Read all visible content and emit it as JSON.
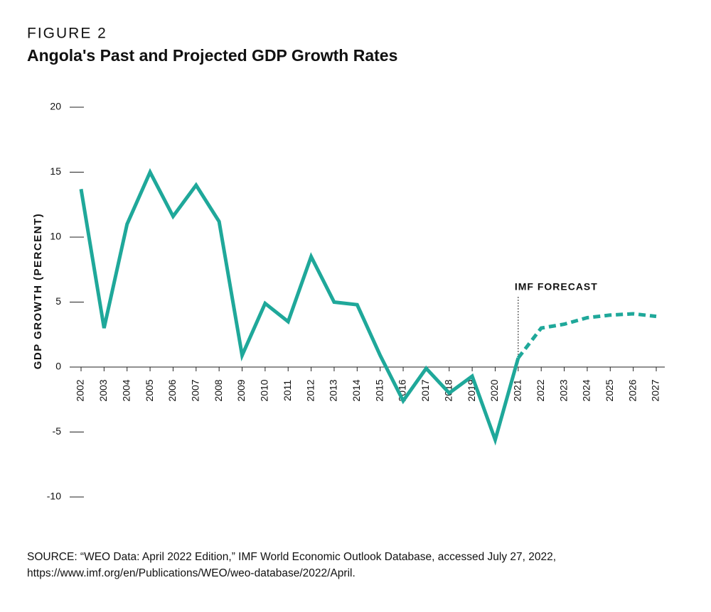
{
  "chart_data": {
    "type": "line",
    "label": "FIGURE 2",
    "title": "Angola's Past and Projected GDP Growth Rates",
    "y_label": "GDP GROWTH (PERCENT)",
    "categories": [
      "2002",
      "2003",
      "2004",
      "2005",
      "2006",
      "2007",
      "2008",
      "2009",
      "2010",
      "2011",
      "2012",
      "2013",
      "2014",
      "2015",
      "2016",
      "2017",
      "2018",
      "2019",
      "2020",
      "2021",
      "2022",
      "2023",
      "2024",
      "2025",
      "2026",
      "2027"
    ],
    "series": [
      {
        "color": "#1fa89a",
        "dashed": false,
        "values": [
          13.7,
          3.0,
          11.0,
          15.0,
          11.6,
          14.0,
          11.2,
          0.9,
          4.9,
          3.5,
          8.5,
          5.0,
          4.8,
          0.9,
          -2.6,
          -0.1,
          -2.0,
          -0.7,
          -5.6,
          0.7,
          null,
          null,
          null,
          null,
          null,
          null
        ]
      },
      {
        "color": "#1fa89a",
        "dashed": true,
        "values": [
          null,
          null,
          null,
          null,
          null,
          null,
          null,
          null,
          null,
          null,
          null,
          null,
          null,
          null,
          null,
          null,
          null,
          null,
          null,
          0.7,
          3.0,
          3.3,
          3.8,
          4.0,
          4.1,
          3.9
        ]
      }
    ],
    "ylim": [
      -10,
      20
    ],
    "yticks": [
      20,
      15,
      10,
      5,
      0,
      -5,
      -10
    ],
    "annotations": [
      {
        "text": "IMF FORECAST",
        "at": "2021"
      }
    ],
    "source": [
      "SOURCE: “WEO Data: April 2022 Edition,” IMF World Economic Outlook Database, accessed July 27, 2022,",
      "https://www.imf.org/en/Publications/WEO/weo-database/2022/April."
    ]
  }
}
